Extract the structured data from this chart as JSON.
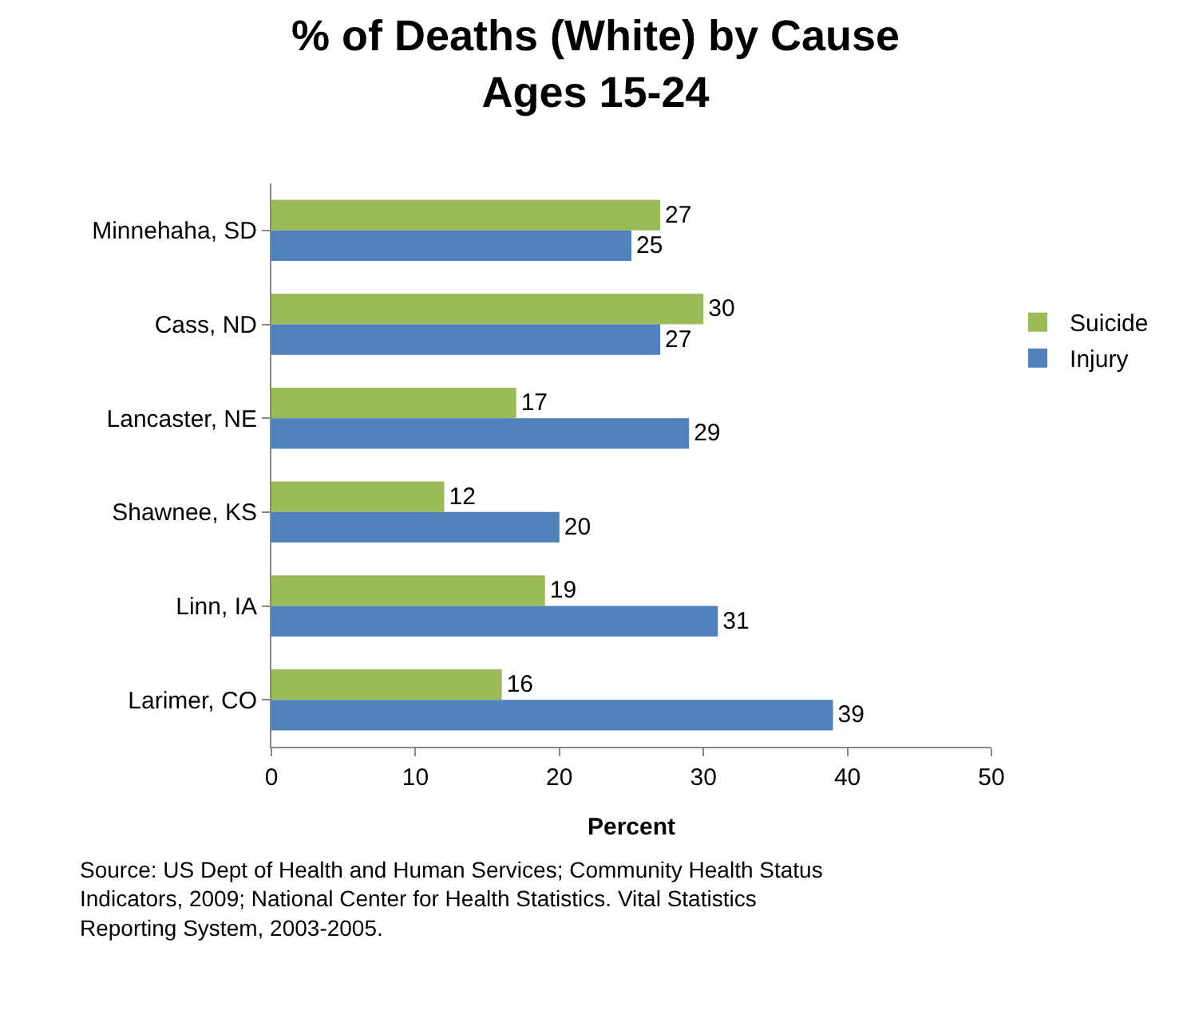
{
  "chart_data": {
    "type": "bar",
    "orientation": "horizontal",
    "title": "% of Deaths (White) by Cause\nAges 15-24",
    "xlabel": "Percent",
    "categories": [
      "Minnehaha, SD",
      "Cass, ND",
      "Lancaster, NE",
      "Shawnee, KS",
      "Linn, IA",
      "Larimer, CO"
    ],
    "series": [
      {
        "name": "Suicide",
        "color": "#9bbb59",
        "values": [
          27,
          30,
          17,
          12,
          19,
          16
        ]
      },
      {
        "name": "Injury",
        "color": "#4f81bd",
        "values": [
          25,
          27,
          29,
          20,
          31,
          39
        ]
      }
    ],
    "xlim": [
      0,
      50
    ],
    "xticks": [
      0,
      10,
      20,
      30,
      40,
      50
    ],
    "grid": false,
    "legend": "right",
    "data_labels": true,
    "annotations": [
      "Source: US Dept of Health and Human Services; Community Health Status Indicators, 2009; National Center for Health Statistics. Vital Statistics Reporting System, 2003-2005."
    ]
  }
}
